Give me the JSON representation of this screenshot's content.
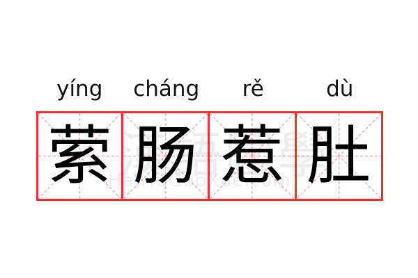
{
  "idiom": {
    "pinyin": [
      "yíng",
      "cháng",
      "rě",
      "dù"
    ],
    "characters": [
      "萦",
      "肠",
      "惹",
      "肚"
    ]
  },
  "watermark": {
    "chinese": "漢語國學",
    "latin": "HanYuGuoXue.com"
  },
  "colors": {
    "border": "#f03232",
    "guide": "#f5a0a0",
    "text": "#000000"
  }
}
